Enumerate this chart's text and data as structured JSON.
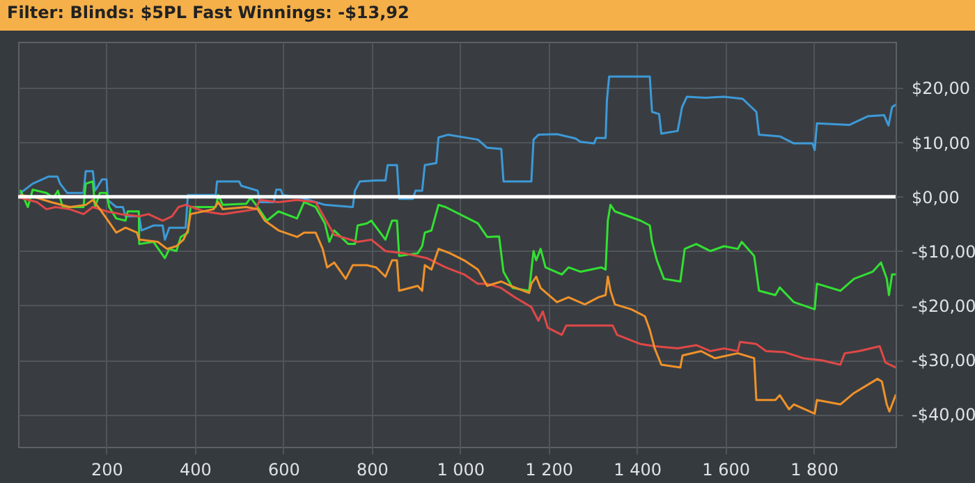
{
  "chart_data": {
    "type": "line",
    "title": "Filter: Blinds: $5PL Fast Winnings: -$13,92",
    "xlim": [
      0,
      1985
    ],
    "ylim": [
      -46,
      28.5
    ],
    "xticks": [
      200,
      400,
      600,
      800,
      {
        "value": 1000,
        "label": "1 000"
      },
      {
        "value": 1200,
        "label": "1 200"
      },
      {
        "value": 1400,
        "label": "1 400"
      },
      {
        "value": 1600,
        "label": "1 600"
      },
      {
        "value": 1800,
        "label": "1 800"
      }
    ],
    "yticks": [
      {
        "value": -40,
        "label": "-$40,00"
      },
      {
        "value": -30,
        "label": "-$30,00"
      },
      {
        "value": -20,
        "label": "-$20,00"
      },
      {
        "value": -10,
        "label": "-$10,00"
      },
      {
        "value": 0,
        "label": "$0,00"
      },
      {
        "value": 10,
        "label": "$10,00"
      },
      {
        "value": 20,
        "label": "$20,00"
      }
    ],
    "grid": true,
    "legend": false,
    "ref_lines": [
      {
        "axis": "y",
        "value": 0,
        "color": "#ffffff"
      }
    ],
    "series": [
      {
        "color": "#3d9ad8",
        "x": [
          6,
          33,
          69,
          89,
          95,
          111,
          148,
          153,
          169,
          174,
          190,
          200,
          203,
          222,
          237,
          243,
          274,
          279,
          306,
          327,
          332,
          342,
          379,
          384,
          447,
          450,
          500,
          505,
          542,
          547,
          578,
          584,
          594,
          599,
          641,
          694,
          757,
          762,
          773,
          810,
          831,
          836,
          857,
          862,
          893,
          899,
          914,
          920,
          946,
          951,
          972,
          1040,
          1061,
          1093,
          1098,
          1161,
          1166,
          1177,
          1219,
          1261,
          1272,
          1303,
          1308,
          1329,
          1332,
          1337,
          1429,
          1434,
          1450,
          1455,
          1492,
          1502,
          1513,
          1555,
          1597,
          1639,
          1670,
          1676,
          1723,
          1755,
          1797,
          1802,
          1807,
          1880,
          1922,
          1959,
          1969,
          1977,
          1985
        ],
        "values": [
          0.7,
          2.4,
          3.7,
          3.7,
          2.4,
          0.7,
          0.7,
          4.7,
          4.7,
          1.1,
          3.2,
          3.2,
          -0.6,
          -1.9,
          -1.9,
          -3.6,
          -3.6,
          -6.2,
          -5.3,
          -5.3,
          -7.9,
          -5.7,
          -5.7,
          0.3,
          0.3,
          2.8,
          2.8,
          2.0,
          1.1,
          -1.0,
          -1.0,
          1.3,
          1.3,
          0.3,
          -0.2,
          -1.5,
          -1.9,
          1.1,
          2.8,
          3.0,
          3.0,
          5.8,
          5.8,
          -0.4,
          -0.4,
          1.1,
          1.1,
          5.8,
          6.2,
          10.9,
          11.4,
          10.5,
          9.0,
          8.8,
          2.8,
          2.8,
          10.5,
          11.4,
          11.5,
          10.7,
          10.1,
          9.8,
          10.8,
          10.8,
          17.8,
          22.1,
          22.1,
          15.6,
          15.2,
          11.6,
          12.1,
          16.5,
          18.4,
          18.2,
          18.4,
          18.0,
          15.6,
          11.4,
          11.1,
          9.8,
          9.8,
          8.6,
          13.5,
          13.2,
          14.8,
          15.0,
          13.1,
          16.5,
          16.9
        ]
      },
      {
        "color": "#33e033",
        "x": [
          6,
          22,
          33,
          64,
          80,
          90,
          101,
          148,
          153,
          169,
          174,
          185,
          200,
          206,
          222,
          243,
          248,
          273,
          274,
          306,
          332,
          342,
          358,
          368,
          384,
          390,
          447,
          453,
          463,
          516,
          526,
          542,
          563,
          589,
          631,
          647,
          673,
          694,
          704,
          715,
          747,
          762,
          768,
          789,
          799,
          831,
          846,
          857,
          862,
          904,
          914,
          920,
          935,
          951,
          967,
          1040,
          1061,
          1088,
          1098,
          1119,
          1156,
          1166,
          1172,
          1182,
          1193,
          1230,
          1245,
          1272,
          1319,
          1329,
          1334,
          1340,
          1350,
          1408,
          1429,
          1434,
          1445,
          1461,
          1498,
          1508,
          1534,
          1566,
          1597,
          1628,
          1637,
          1665,
          1676,
          1713,
          1723,
          1755,
          1802,
          1807,
          1860,
          1891,
          1933,
          1952,
          1965,
          1970,
          1977,
          1985
        ],
        "values": [
          1.1,
          -1.9,
          1.3,
          0.7,
          -0.2,
          1.1,
          -1.9,
          -1.9,
          2.4,
          2.8,
          -1.9,
          0.7,
          0.7,
          -1.9,
          -4.0,
          -4.4,
          -2.7,
          -2.7,
          -8.7,
          -8.3,
          -11.3,
          -9.6,
          -10.0,
          -7.4,
          -6.6,
          -1.9,
          -1.9,
          0.3,
          -1.5,
          -1.3,
          -0.2,
          -1.9,
          -4.4,
          -2.7,
          -4.0,
          -1.0,
          -1.9,
          -4.9,
          -8.3,
          -6.2,
          -8.7,
          -8.7,
          -5.3,
          -4.9,
          -4.4,
          -7.9,
          -4.4,
          -4.4,
          -10.9,
          -10.4,
          -9.1,
          -6.6,
          -6.2,
          -1.5,
          -1.9,
          -4.9,
          -7.4,
          -7.3,
          -13.8,
          -16.8,
          -17.3,
          -10.0,
          -11.7,
          -9.6,
          -13.0,
          -14.3,
          -13.0,
          -13.8,
          -13.0,
          -13.4,
          -4.4,
          -1.5,
          -2.7,
          -4.4,
          -5.3,
          -8.3,
          -11.7,
          -15.1,
          -15.6,
          -9.6,
          -8.7,
          -10.0,
          -9.1,
          -9.6,
          -8.3,
          -10.9,
          -17.3,
          -18.1,
          -16.7,
          -19.4,
          -20.7,
          -16.0,
          -17.3,
          -15.1,
          -13.8,
          -12.1,
          -15.1,
          -18.1,
          -14.3,
          -14.3
        ]
      },
      {
        "color": "#e04848",
        "x": [
          6,
          43,
          64,
          85,
          117,
          148,
          169,
          200,
          232,
          274,
          295,
          327,
          348,
          363,
          379,
          421,
          463,
          505,
          537,
          547,
          589,
          631,
          673,
          694,
          715,
          768,
          799,
          831,
          873,
          925,
          967,
          1009,
          1040,
          1061,
          1093,
          1124,
          1161,
          1166,
          1177,
          1187,
          1198,
          1230,
          1240,
          1303,
          1345,
          1355,
          1408,
          1440,
          1492,
          1534,
          1566,
          1597,
          1628,
          1633,
          1670,
          1692,
          1734,
          1776,
          1818,
          1860,
          1870,
          1902,
          1949,
          1962,
          1985
        ],
        "values": [
          -0.2,
          -1.0,
          -2.3,
          -1.9,
          -2.3,
          -3.2,
          -1.9,
          -2.7,
          -3.2,
          -3.6,
          -3.2,
          -4.4,
          -3.6,
          -1.9,
          -1.5,
          -2.7,
          -3.2,
          -2.7,
          -2.3,
          -0.6,
          -1.0,
          -0.6,
          -1.0,
          -4.0,
          -7.0,
          -8.3,
          -7.9,
          -10.0,
          -10.4,
          -11.3,
          -13.0,
          -14.3,
          -16.0,
          -16.0,
          -16.8,
          -18.5,
          -20.3,
          -21.1,
          -22.8,
          -21.1,
          -24.1,
          -25.4,
          -23.7,
          -23.7,
          -23.7,
          -25.4,
          -27.1,
          -27.5,
          -27.9,
          -27.3,
          -28.4,
          -27.9,
          -28.4,
          -26.7,
          -27.1,
          -28.4,
          -28.6,
          -29.7,
          -30.1,
          -30.9,
          -28.8,
          -28.4,
          -27.5,
          -30.5,
          -31.4
        ]
      },
      {
        "color": "#f0922a",
        "x": [
          6,
          43,
          75,
          117,
          153,
          169,
          185,
          200,
          222,
          243,
          269,
          274,
          316,
          337,
          358,
          374,
          384,
          390,
          442,
          453,
          463,
          516,
          542,
          558,
          589,
          631,
          647,
          673,
          689,
          699,
          715,
          741,
          757,
          789,
          810,
          831,
          846,
          857,
          862,
          904,
          914,
          920,
          935,
          951,
          977,
          1009,
          1040,
          1061,
          1093,
          1114,
          1156,
          1161,
          1172,
          1182,
          1219,
          1245,
          1282,
          1313,
          1329,
          1334,
          1340,
          1350,
          1387,
          1418,
          1429,
          1440,
          1455,
          1498,
          1503,
          1545,
          1576,
          1628,
          1665,
          1670,
          1713,
          1723,
          1744,
          1755,
          1802,
          1807,
          1860,
          1891,
          1944,
          1954,
          1965,
          1971,
          1985
        ],
        "values": [
          0.3,
          -0.2,
          -1.0,
          -1.9,
          -1.5,
          -0.6,
          -2.3,
          -4.0,
          -6.6,
          -5.7,
          -6.6,
          -7.9,
          -8.3,
          -9.6,
          -9.1,
          -7.9,
          -6.2,
          -3.2,
          -2.3,
          -1.0,
          -2.3,
          -1.9,
          -2.3,
          -4.4,
          -6.2,
          -7.4,
          -6.6,
          -6.6,
          -9.6,
          -13.0,
          -12.1,
          -15.1,
          -12.6,
          -12.6,
          -13.0,
          -14.7,
          -11.7,
          -11.7,
          -17.3,
          -16.4,
          -17.3,
          -12.6,
          -13.4,
          -9.6,
          -10.4,
          -11.7,
          -13.4,
          -16.4,
          -15.6,
          -16.4,
          -17.7,
          -16.0,
          -14.7,
          -16.8,
          -19.4,
          -18.5,
          -19.8,
          -18.5,
          -18.1,
          -14.7,
          -17.3,
          -19.8,
          -20.7,
          -22.0,
          -24.5,
          -27.9,
          -30.9,
          -31.4,
          -29.2,
          -28.4,
          -29.7,
          -28.8,
          -29.7,
          -37.4,
          -37.4,
          -36.5,
          -39.1,
          -38.2,
          -39.9,
          -37.4,
          -38.2,
          -36.1,
          -33.5,
          -34.0,
          -38.2,
          -39.5,
          -36.5
        ]
      }
    ]
  }
}
